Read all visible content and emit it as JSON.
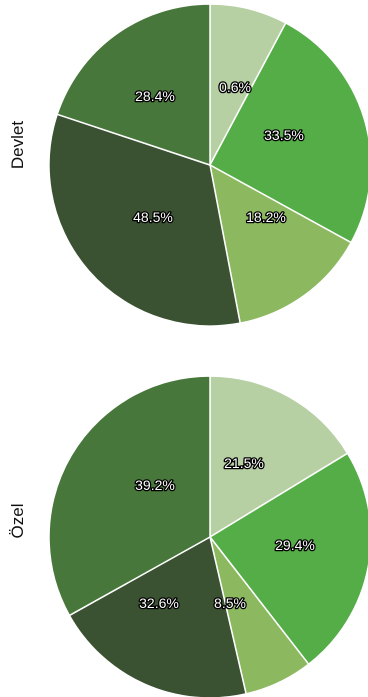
{
  "chart_data": [
    {
      "type": "pie",
      "panel_label": "Devlet",
      "start_angle_deg": 0,
      "direction": "clockwise",
      "slices": [
        {
          "label": "0.6%",
          "value": 7.8,
          "color": "#b7d0a3"
        },
        {
          "label": "33.5%",
          "value": 25.2,
          "color": "#55ad47"
        },
        {
          "label": "18.2%",
          "value": 14.0,
          "color": "#8cb960"
        },
        {
          "label": "48.5%",
          "value": 33.1,
          "color": "#3a5231"
        },
        {
          "label": "28.4%",
          "value": 19.9,
          "color": "#48773b"
        }
      ]
    },
    {
      "type": "pie",
      "panel_label": "Özel",
      "start_angle_deg": 0,
      "direction": "clockwise",
      "slices": [
        {
          "label": "21.5%",
          "value": 16.3,
          "color": "#b7d0a3"
        },
        {
          "label": "29.4%",
          "value": 23.2,
          "color": "#55ad47"
        },
        {
          "label": "8.5%",
          "value": 6.9,
          "color": "#8cb960"
        },
        {
          "label": "32.6%",
          "value": 20.5,
          "color": "#3a5231"
        },
        {
          "label": "39.2%",
          "value": 33.1,
          "color": "#48773b"
        }
      ]
    }
  ]
}
